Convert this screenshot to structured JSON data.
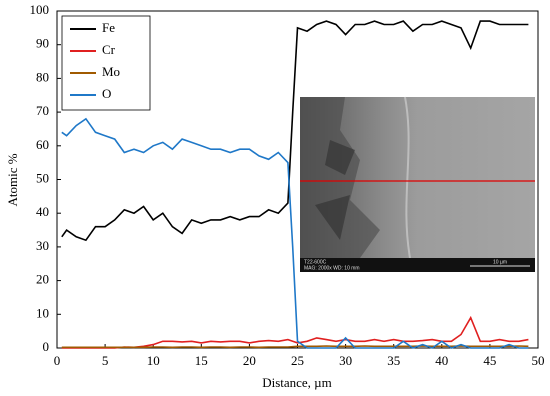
{
  "chart_data": {
    "type": "line",
    "xlabel": "Distance, µm",
    "ylabel": "Atomic %",
    "x": [
      0.5,
      1,
      2,
      3,
      4,
      5,
      6,
      7,
      8,
      9,
      10,
      11,
      12,
      13,
      14,
      15,
      16,
      17,
      18,
      19,
      20,
      21,
      22,
      23,
      24,
      24.5,
      25,
      26,
      27,
      28,
      29,
      30,
      31,
      32,
      33,
      34,
      35,
      36,
      37,
      38,
      39,
      40,
      41,
      42,
      43,
      44,
      45,
      46,
      47,
      48,
      49
    ],
    "series": [
      {
        "name": "Fe",
        "color": "#000000",
        "values": [
          33,
          35,
          33,
          32,
          36,
          36,
          38,
          41,
          40,
          42,
          38,
          40,
          36,
          34,
          38,
          37,
          38,
          38,
          39,
          38,
          39,
          39,
          41,
          40,
          43,
          70,
          95,
          94,
          96,
          97,
          96,
          93,
          96,
          96,
          97,
          96,
          96,
          97,
          94,
          96,
          96,
          97,
          96,
          95,
          89,
          97,
          97,
          96,
          96,
          96,
          96
        ]
      },
      {
        "name": "Cr",
        "color": "#e02020",
        "values": [
          0,
          0,
          0,
          0,
          0,
          0,
          0,
          0.3,
          0.2,
          0.5,
          1,
          2,
          2,
          1.8,
          2,
          1.5,
          2,
          1.8,
          2,
          2,
          1.5,
          2,
          2.2,
          2,
          2.5,
          2,
          1.5,
          2,
          3,
          2.5,
          2,
          2.5,
          2,
          2,
          2.5,
          2,
          2.5,
          2,
          2,
          2.2,
          2.5,
          2,
          2,
          4,
          9,
          2,
          2,
          2.5,
          2,
          2,
          2.5
        ]
      },
      {
        "name": "Mo",
        "color": "#a05a00",
        "values": [
          0.2,
          0.2,
          0.2,
          0.2,
          0.2,
          0.2,
          0.2,
          0.2,
          0.2,
          0.2,
          0.3,
          0.3,
          0.2,
          0.3,
          0.3,
          0.2,
          0.3,
          0.3,
          0.2,
          0.3,
          0.3,
          0.2,
          0.3,
          0.3,
          0.3,
          0.4,
          0.5,
          0.5,
          0.5,
          0.6,
          0.5,
          0.5,
          0.5,
          0.6,
          0.5,
          0.5,
          0.5,
          0.5,
          0.5,
          0.6,
          0.5,
          0.5,
          0.5,
          0.6,
          0.5,
          0.5,
          0.5,
          0.5,
          0.5,
          0.6,
          0.5
        ]
      },
      {
        "name": "O",
        "color": "#1f78c8",
        "values": [
          64,
          63,
          66,
          68,
          64,
          63,
          62,
          58,
          59,
          58,
          60,
          61,
          59,
          62,
          61,
          60,
          59,
          59,
          58,
          59,
          59,
          57,
          56,
          58,
          55,
          30,
          2,
          0,
          0,
          0,
          0,
          3,
          0,
          0,
          0,
          0,
          0,
          2,
          0,
          1,
          0,
          2,
          0,
          1,
          0,
          0,
          0,
          0,
          1,
          0,
          0
        ]
      }
    ],
    "xlim": [
      0,
      50
    ],
    "xticks": [
      0,
      5,
      10,
      15,
      20,
      25,
      30,
      35,
      40,
      45,
      50
    ],
    "ylim": [
      0,
      100
    ],
    "yticks": [
      0,
      10,
      20,
      30,
      40,
      50,
      60,
      70,
      80,
      90,
      100
    ],
    "grid": false,
    "legend": "upper left",
    "inset": {
      "sample": "T22-600C",
      "info": "MAG: 2000x    WD: 10 mm",
      "scale": "10 µm"
    }
  }
}
